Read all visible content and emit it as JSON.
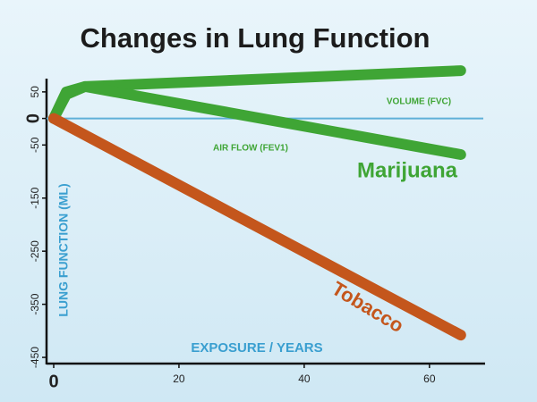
{
  "chart_data": {
    "type": "line",
    "title": "Changes in Lung Function",
    "y_label": "LUNG FUNCTION (ML)",
    "x_label": "EXPOSURE / YEARS",
    "annotations": [
      "Marijuana"
    ],
    "series": [
      {
        "name": "VOLUME (FVC)",
        "color": "#3fa535",
        "x": [
          0,
          2,
          5,
          65
        ],
        "values": [
          0,
          50,
          60,
          90
        ]
      },
      {
        "name": "AIR FLOW (FEV1)",
        "color": "#3fa535",
        "x": [
          0,
          2,
          5,
          65
        ],
        "values": [
          0,
          45,
          60,
          -68
        ]
      },
      {
        "name": "Tobacco",
        "color": "#c4561c",
        "x": [
          0,
          65
        ],
        "values": [
          0,
          -408
        ]
      }
    ],
    "reference_line": 0,
    "xlim": [
      0,
      68.6
    ],
    "xticks": [
      0,
      20,
      40,
      60
    ],
    "ylim": [
      -460,
      75
    ],
    "yticks": [
      50,
      0,
      -50,
      -150,
      -250,
      -350,
      -450
    ]
  }
}
